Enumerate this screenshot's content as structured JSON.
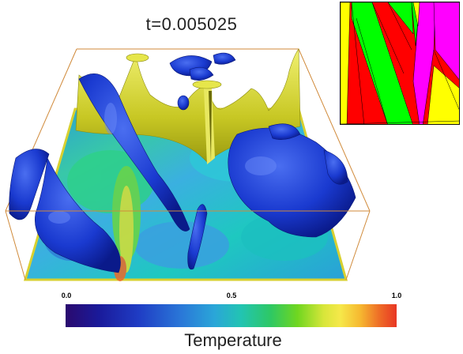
{
  "title": "t=0.005025",
  "colorbar": {
    "label": "Temperature",
    "ticks": [
      "0.0",
      "0.5",
      "1.0"
    ],
    "colors": [
      "#2a0a6e",
      "#1f3cc4",
      "#2aa6d8",
      "#2ec864",
      "#f6e84a",
      "#e83624"
    ]
  },
  "inset": {
    "colors": [
      "#ff0000",
      "#00ff00",
      "#ff00ff",
      "#ffff00"
    ]
  }
}
